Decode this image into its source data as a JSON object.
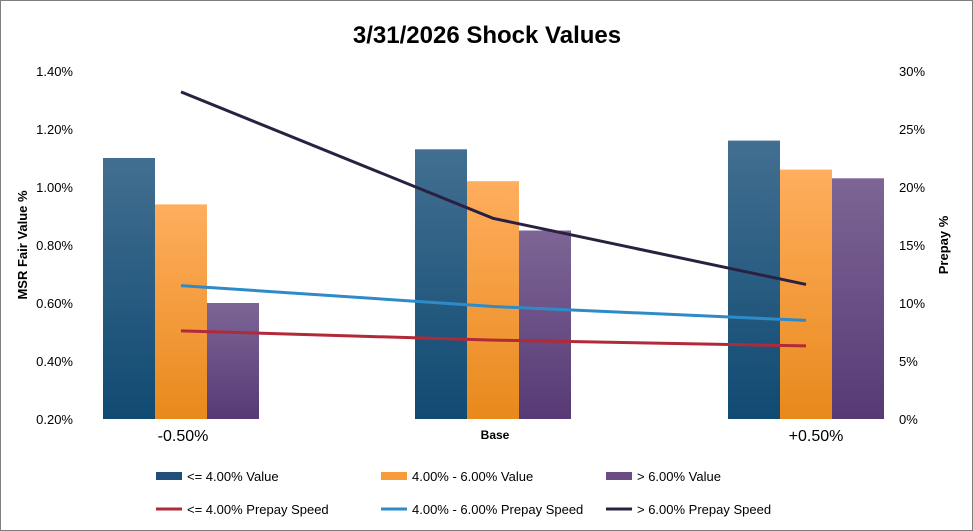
{
  "chart_data": {
    "type": "bar",
    "title": "3/31/2026 Shock Values",
    "categories": [
      "-0.50%",
      "Base",
      "+0.50%"
    ],
    "ylabel": "MSR Fair Value %",
    "y2label": "Prepay %",
    "ylim": [
      0.2,
      1.4
    ],
    "y2lim": [
      0,
      30
    ],
    "yticks": [
      "0.20%",
      "0.40%",
      "0.60%",
      "0.80%",
      "1.00%",
      "1.20%",
      "1.40%"
    ],
    "y2ticks": [
      "0%",
      "5%",
      "10%",
      "15%",
      "20%",
      "25%",
      "30%"
    ],
    "grid": false,
    "legend": "bottom",
    "bar_series": [
      {
        "name": "<= 4.00% Value",
        "values": [
          1.1,
          1.13,
          1.16
        ],
        "color": "#1f4e79"
      },
      {
        "name": "4.00% - 6.00% Value",
        "values": [
          0.94,
          1.02,
          1.06
        ],
        "color": "#f79c3a"
      },
      {
        "name": "> 6.00% Value",
        "values": [
          0.6,
          0.85,
          1.03
        ],
        "color": "#6b4c85"
      }
    ],
    "line_series": [
      {
        "name": "<= 4.00% Prepay Speed",
        "values": [
          7.6,
          6.8,
          6.3
        ],
        "color": "#b02a3a"
      },
      {
        "name": "4.00% - 6.00% Prepay Speed",
        "values": [
          11.5,
          9.7,
          8.5
        ],
        "color": "#2e8bc9"
      },
      {
        "name": "> 6.00% Prepay Speed",
        "values": [
          28.2,
          17.3,
          11.6
        ],
        "color": "#2a2040"
      }
    ]
  }
}
